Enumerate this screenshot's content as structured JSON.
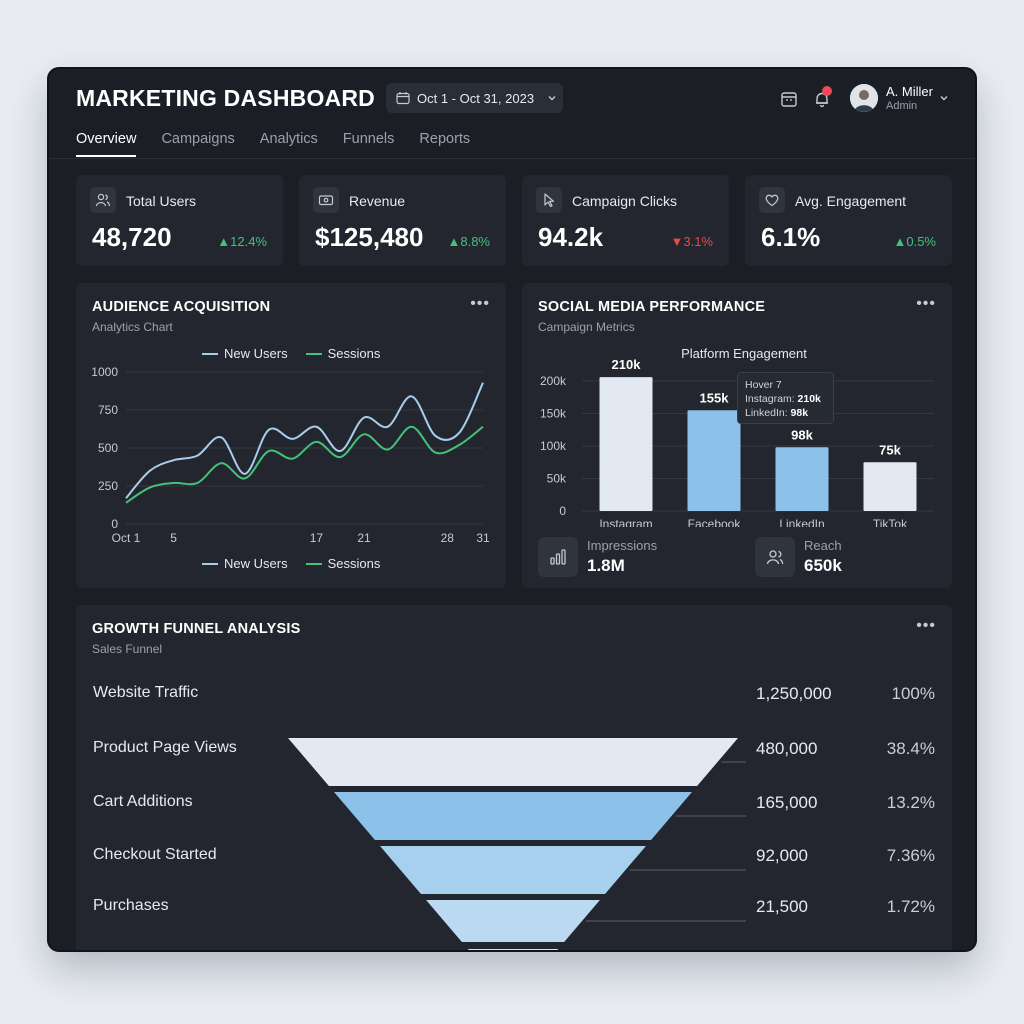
{
  "header": {
    "title": "MARKETING DASHBOARD",
    "date_range": "Oct 1 - Oct 31, 2023",
    "user_name": "A. Miller",
    "user_role": "Admin"
  },
  "tabs": [
    {
      "label": "Overview",
      "active": true
    },
    {
      "label": "Campaigns",
      "active": false
    },
    {
      "label": "Analytics",
      "active": false
    },
    {
      "label": "Funnels",
      "active": false
    },
    {
      "label": "Reports",
      "active": false
    }
  ],
  "kpis": [
    {
      "label": "Total Users",
      "value": "48,720",
      "delta": "12.4%",
      "trend": "up",
      "icon": "users-icon"
    },
    {
      "label": "Revenue",
      "value": "$125,480",
      "delta": "8.8%",
      "trend": "up",
      "icon": "cash-icon"
    },
    {
      "label": "Campaign Clicks",
      "value": "94.2k",
      "delta": "3.1%",
      "trend": "down",
      "icon": "cursor-icon"
    },
    {
      "label": "Avg. Engagement",
      "value": "6.1%",
      "delta": "0.5%",
      "trend": "up",
      "icon": "heart-icon"
    }
  ],
  "colors": {
    "accent_light": "#a9cdea",
    "accent_green": "#43c27a",
    "bar_light": "#e3e9f2",
    "bar_blue": "#8cc2ea",
    "up": "#43c27a",
    "down": "#e5484d"
  },
  "audience": {
    "title": "AUDIENCE ACQUISITION",
    "subtitle": "Analytics Chart",
    "chart_data": {
      "type": "line",
      "x_tick_labels": [
        "Oct 1",
        "5",
        "17",
        "21",
        "28",
        "31"
      ],
      "x_ticks": [
        1,
        5,
        17,
        21,
        28,
        31
      ],
      "xlim": [
        1,
        31
      ],
      "ylim": [
        0,
        1000
      ],
      "y_ticks": [
        0,
        250,
        500,
        750,
        1000
      ],
      "grid": true,
      "legend_position": "top and bottom",
      "series": [
        {
          "name": "New Users",
          "color": "#a9cdea",
          "x": [
            1,
            3,
            5,
            7,
            9,
            11,
            13,
            15,
            17,
            19,
            21,
            23,
            25,
            27,
            29,
            31
          ],
          "y": [
            170,
            350,
            420,
            450,
            570,
            330,
            620,
            560,
            640,
            480,
            700,
            640,
            840,
            580,
            600,
            930
          ]
        },
        {
          "name": "Sessions",
          "color": "#43c27a",
          "x": [
            1,
            3,
            5,
            7,
            9,
            11,
            13,
            15,
            17,
            19,
            21,
            23,
            25,
            27,
            29,
            31
          ],
          "y": [
            140,
            240,
            270,
            270,
            400,
            300,
            480,
            430,
            540,
            440,
            590,
            490,
            640,
            470,
            520,
            640
          ]
        }
      ]
    }
  },
  "social": {
    "title": "SOCIAL MEDIA PERFORMANCE",
    "subtitle": "Campaign Metrics",
    "chart_data": {
      "type": "bar",
      "title": "Platform Engagement",
      "categories": [
        "Instagram",
        "Facebook",
        "LinkedIn",
        "TikTok"
      ],
      "values": [
        210,
        155,
        98,
        75
      ],
      "value_labels": [
        "210k",
        "155k",
        "98k",
        "75k"
      ],
      "bar_colors": [
        "#e3e9f2",
        "#8cc2ea",
        "#8cc2ea",
        "#e3e9f2"
      ],
      "ylim": [
        0,
        200
      ],
      "y_ticks": [
        0,
        50,
        100,
        150,
        200
      ],
      "y_tick_labels": [
        "0",
        "50k",
        "100k",
        "150k",
        "200k"
      ],
      "grid": true
    },
    "tooltip": {
      "title": "Hover 7",
      "line1_label": "Instagram:",
      "line1_value": "210k",
      "line2_label": "LinkedIn:",
      "line2_value": "98k"
    },
    "metrics": [
      {
        "label": "Impressions",
        "value": "1.8M",
        "icon": "bar-chart-icon"
      },
      {
        "label": "Reach",
        "value": "650k",
        "icon": "users-icon"
      }
    ]
  },
  "funnel": {
    "title": "GROWTH FUNNEL ANALYSIS",
    "subtitle": "Sales Funnel",
    "stages": [
      {
        "label": "Website Traffic",
        "value": "1,250,000",
        "pct": "100%",
        "color": "#e3e9f2"
      },
      {
        "label": "Product Page Views",
        "value": "480,000",
        "pct": "38.4%",
        "color": "#8cc2ea"
      },
      {
        "label": "Cart Additions",
        "value": "165,000",
        "pct": "13.2%",
        "color": "#a6d0ee"
      },
      {
        "label": "Checkout Started",
        "value": "92,000",
        "pct": "7.36%",
        "color": "#bbdaf2"
      },
      {
        "label": "Purchases",
        "value": "21,500",
        "pct": "1.72%",
        "color": "#d2e6f6"
      }
    ]
  }
}
